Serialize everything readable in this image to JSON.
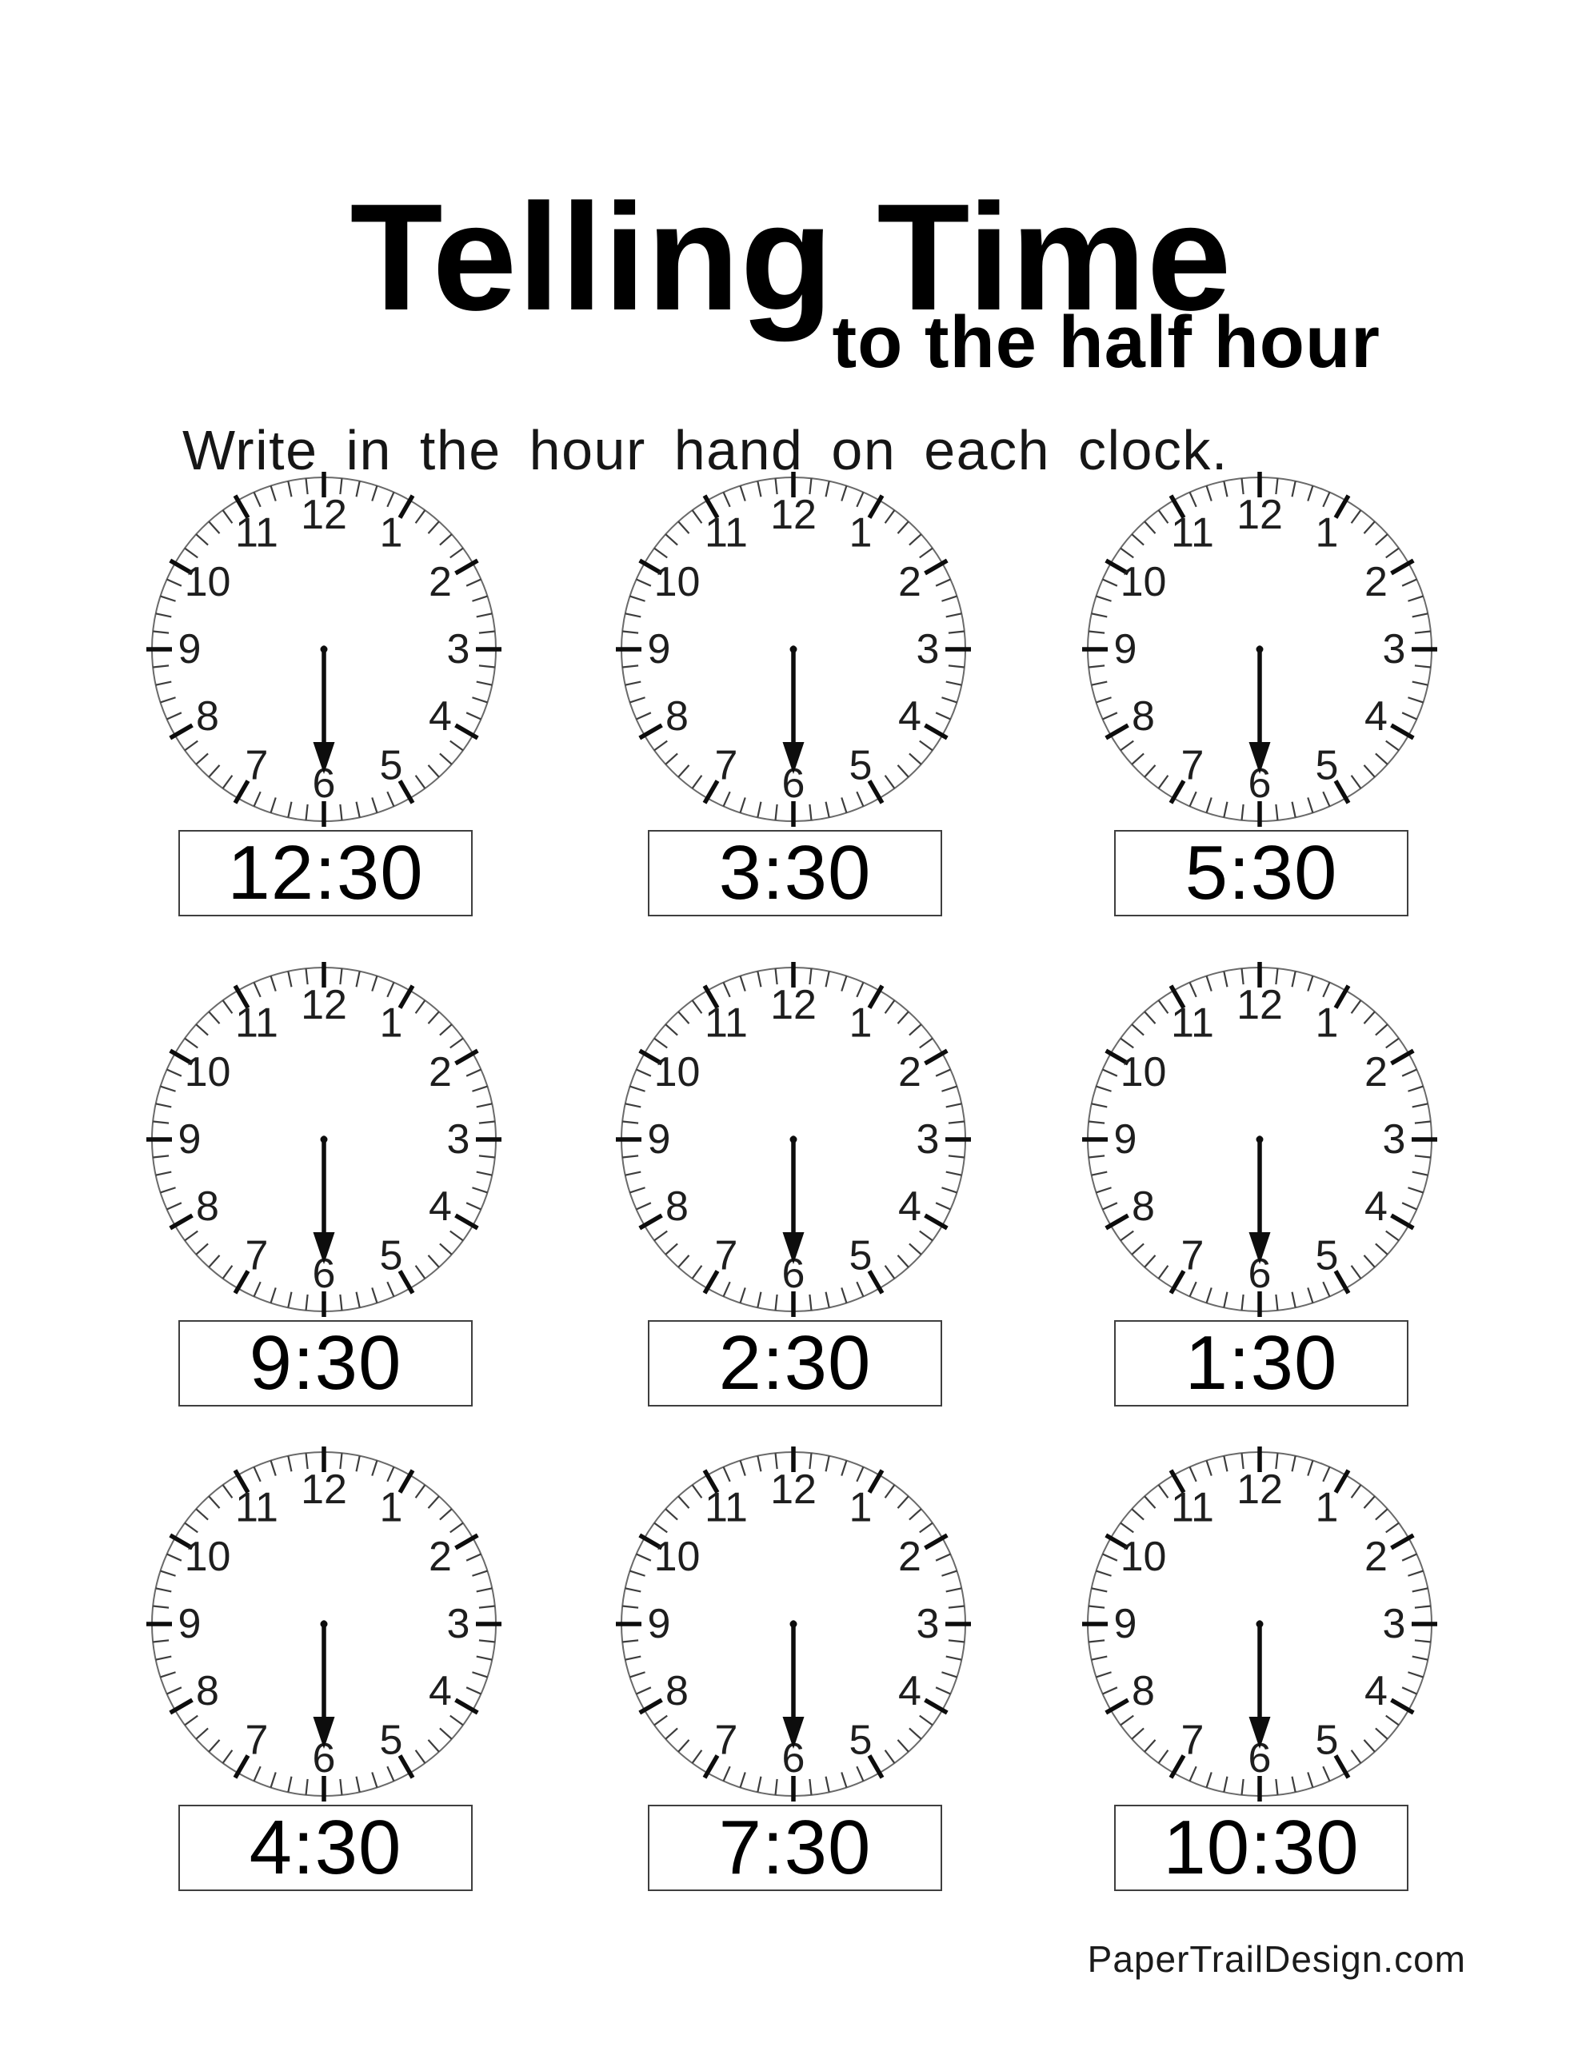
{
  "page": {
    "title": "Telling Time",
    "subtitle": "to the half hour",
    "instruction": "Write in the hour hand on each clock.",
    "footer": "PaperTrailDesign.com"
  },
  "colors": {
    "ink": "#0d0d0d",
    "rim": "#6a6a6a",
    "minute_tick": "#3d3d3d",
    "number": "#1e1e1e"
  },
  "clock_face": {
    "numbers": [
      "12",
      "1",
      "2",
      "3",
      "4",
      "5",
      "6",
      "7",
      "8",
      "9",
      "10",
      "11"
    ],
    "minute_hand_minutes": 30,
    "hour_hand_drawn": false
  },
  "clocks": [
    {
      "time_label": "12:30"
    },
    {
      "time_label": "3:30"
    },
    {
      "time_label": "5:30"
    },
    {
      "time_label": "9:30"
    },
    {
      "time_label": "2:30"
    },
    {
      "time_label": "1:30"
    },
    {
      "time_label": "4:30"
    },
    {
      "time_label": "7:30"
    },
    {
      "time_label": "10:30"
    }
  ]
}
